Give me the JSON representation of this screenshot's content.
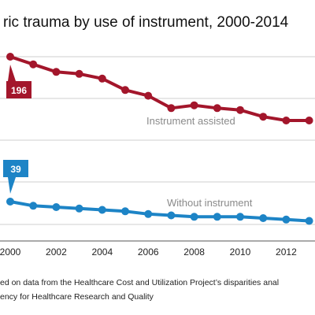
{
  "chart_data": {
    "type": "line",
    "title": "ric trauma by use of instrument, 2000-2014",
    "x": [
      2000,
      2001,
      2002,
      2003,
      2004,
      2005,
      2006,
      2007,
      2008,
      2009,
      2010,
      2011,
      2012,
      2013
    ],
    "x_tick_labels": [
      "2000",
      "2002",
      "2004",
      "2006",
      "2008",
      "2010",
      "2012"
    ],
    "series": [
      {
        "name": "Instrument assisted",
        "color": "#a3162b",
        "values": [
          196,
          188,
          180,
          178,
          173,
          161,
          155,
          142,
          145,
          142,
          140,
          133,
          129,
          129
        ],
        "callout": "196"
      },
      {
        "name": "Without instrument",
        "color": "#1d84c6",
        "values": [
          39,
          36,
          35,
          34,
          33,
          32,
          30,
          29,
          28,
          28,
          28,
          27,
          26,
          25
        ],
        "callout": "39"
      }
    ],
    "grid": "horizontal",
    "legend": "inline labels"
  },
  "notes": {
    "line1": "ed on data from the Healthcare Cost and Utilization Project’s disparities anal",
    "line2": "ency for Healthcare Research and Quality"
  }
}
